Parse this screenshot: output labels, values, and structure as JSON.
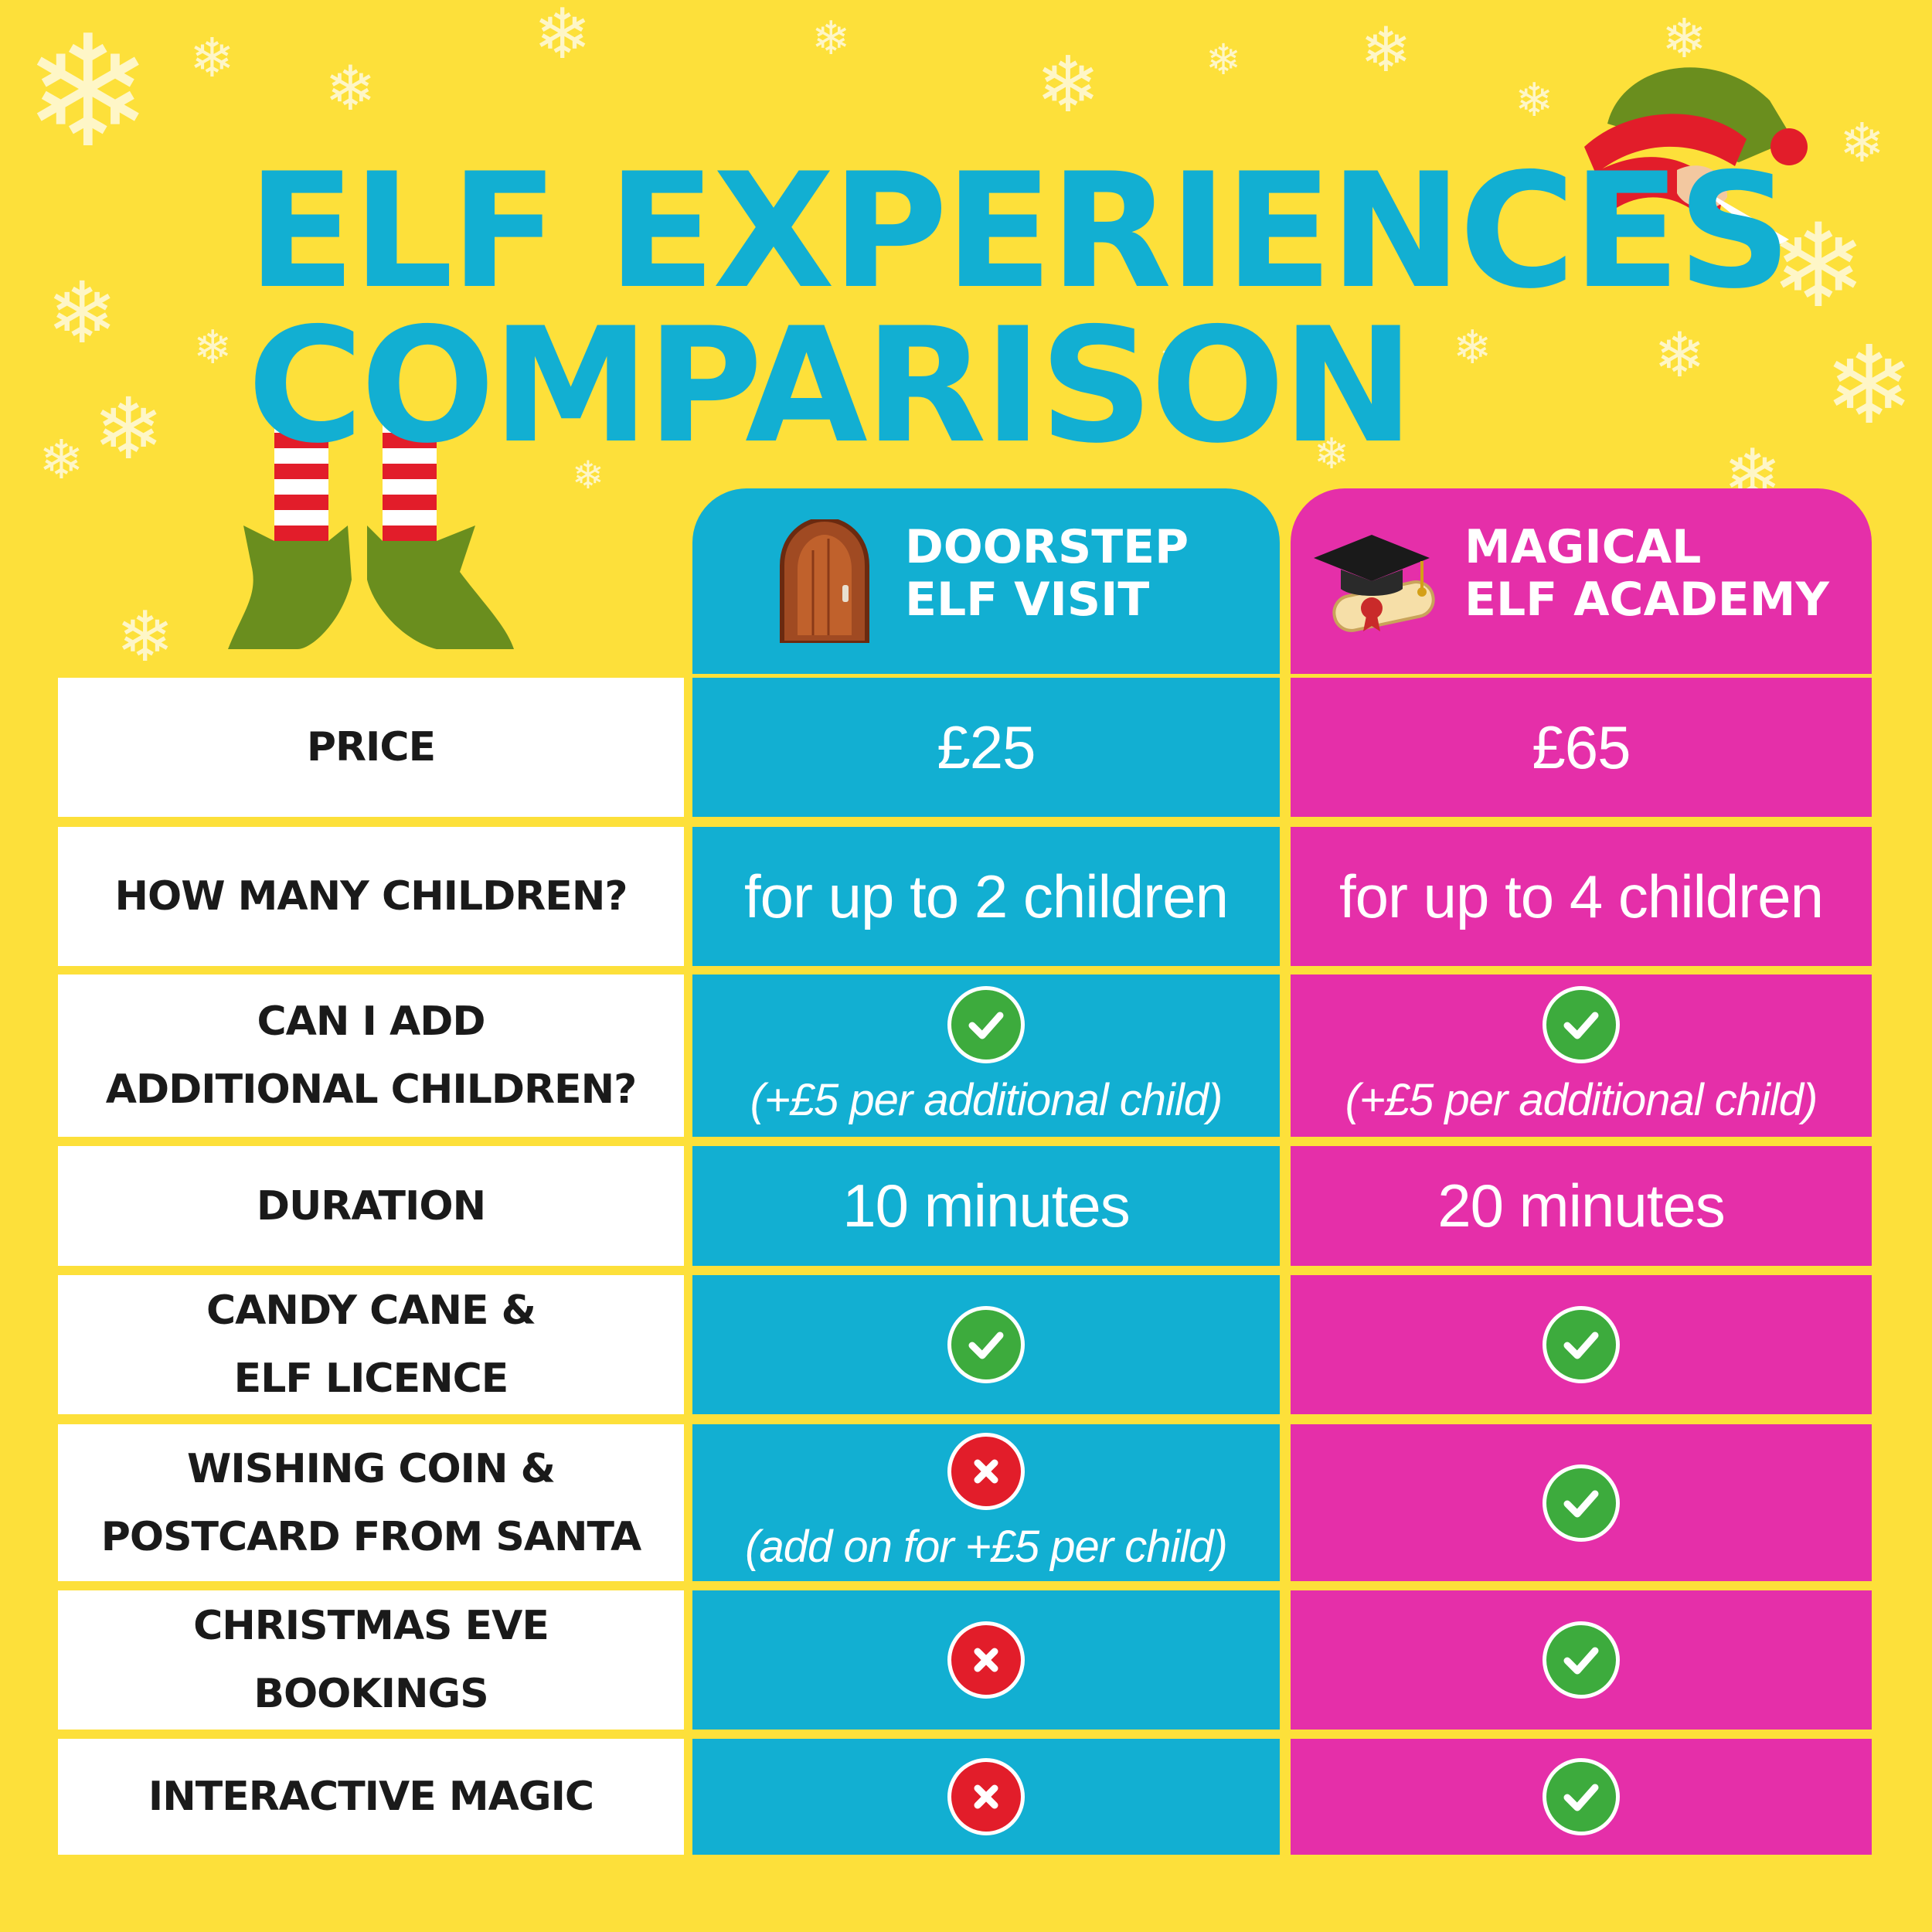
{
  "title_line1": "ELF EXPERIENCES",
  "title_line2": "COMPARISON",
  "columns": [
    {
      "label": "DOORSTEP\nELF VISIT",
      "color": "#12afd2",
      "icon": "door-icon"
    },
    {
      "label": "MAGICAL\nELF ACADEMY",
      "color": "#e52fa9",
      "icon": "graduation-cap-icon"
    }
  ],
  "rows": [
    {
      "label": "PRICE",
      "doorstep": {
        "value": "£25"
      },
      "academy": {
        "value": "£65"
      }
    },
    {
      "label": "HOW MANY CHILDREN?",
      "doorstep": {
        "value": "for up to 2 children"
      },
      "academy": {
        "value": "for up to 4 children"
      }
    },
    {
      "label": "CAN I ADD\nADDITIONAL CHILDREN?",
      "doorstep": {
        "status": "yes",
        "note": "(+£5 per additional child)"
      },
      "academy": {
        "status": "yes",
        "note": "(+£5 per additional child)"
      }
    },
    {
      "label": "DURATION",
      "doorstep": {
        "value": "10 minutes"
      },
      "academy": {
        "value": "20 minutes"
      }
    },
    {
      "label": "CANDY CANE &\nELF LICENCE",
      "doorstep": {
        "status": "yes"
      },
      "academy": {
        "status": "yes"
      }
    },
    {
      "label": "WISHING COIN &\nPOSTCARD FROM SANTA",
      "doorstep": {
        "status": "no",
        "note": "(add on for +£5 per child)"
      },
      "academy": {
        "status": "yes"
      }
    },
    {
      "label": "CHRISTMAS EVE\nBOOKINGS",
      "doorstep": {
        "status": "no"
      },
      "academy": {
        "status": "yes"
      }
    },
    {
      "label": "INTERACTIVE MAGIC",
      "doorstep": {
        "status": "no"
      },
      "academy": {
        "status": "yes"
      }
    }
  ],
  "colors": {
    "background": "#fde03a",
    "title": "#12afd2",
    "yes": "#3dab3d",
    "no": "#e21d2a"
  },
  "decorations": [
    "snowflake-icon",
    "elf-hat-icon",
    "elf-legs-icon"
  ]
}
